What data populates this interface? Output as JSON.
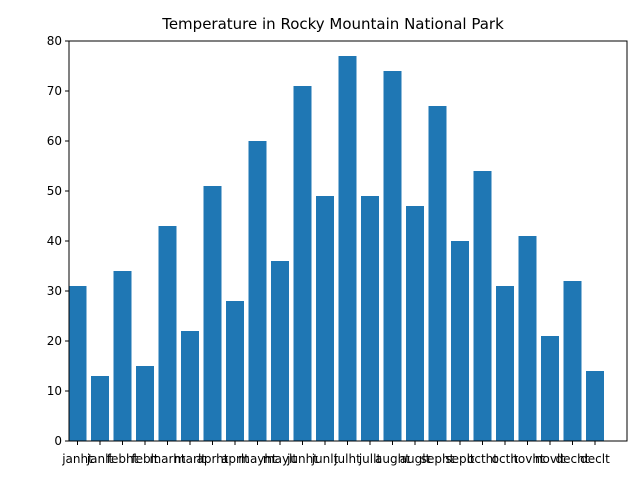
{
  "chart_data": {
    "type": "bar",
    "title": "Temperature in Rocky Mountain National Park",
    "xlabel": "",
    "ylabel": "",
    "categories": [
      "janhi",
      "janlo",
      "febhi",
      "feblo",
      "marhi",
      "marlo",
      "aprhi",
      "aprlo",
      "mayhi",
      "maylo",
      "junhi",
      "junlo",
      "julhi",
      "jullo",
      "aughi",
      "auglo",
      "sephi",
      "seplo",
      "octhi",
      "octlo",
      "novhi",
      "novlo",
      "dechi",
      "declo"
    ],
    "tick_labels": [
      "janht",
      "janlt",
      "febht",
      "feblt",
      "marht",
      "marlt",
      "aprht",
      "aprlt",
      "mayht",
      "maylt",
      "junht",
      "junlt",
      "julht",
      "jullt",
      "aught",
      "auglt",
      "sepht",
      "seplt",
      "octht",
      "octlt",
      "novht",
      "novlt",
      "decht",
      "declt"
    ],
    "values": [
      31,
      13,
      34,
      15,
      43,
      22,
      51,
      28,
      60,
      36,
      71,
      49,
      77,
      49,
      74,
      47,
      67,
      40,
      54,
      31,
      41,
      21,
      32,
      14
    ],
    "ylim": [
      0,
      80
    ],
    "yticks": [
      0,
      10,
      20,
      30,
      40,
      50,
      60,
      70,
      80
    ],
    "grid": false,
    "bar_color": "#1f77b4"
  }
}
